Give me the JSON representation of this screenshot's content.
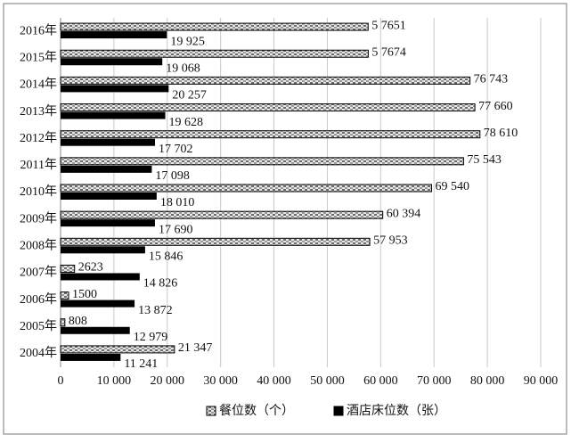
{
  "chart_data": {
    "type": "bar",
    "orientation": "horizontal",
    "categories": [
      "2016年",
      "2015年",
      "2014年",
      "2013年",
      "2012年",
      "2011年",
      "2010年",
      "2009年",
      "2008年",
      "2007年",
      "2006年",
      "2005年",
      "2004年"
    ],
    "series": [
      {
        "name": "餐位数（个）",
        "color": "#9a9a9a",
        "values": [
          57651,
          57674,
          76743,
          77660,
          78610,
          75543,
          69540,
          60394,
          57953,
          2623,
          1500,
          808,
          21347
        ],
        "value_labels": [
          "5 7651",
          "5 7674",
          "76 743",
          "77 660",
          "78 610",
          "75 543",
          "69 540",
          "60 394",
          "57 953",
          "2623",
          "1500",
          "808",
          "21 347"
        ]
      },
      {
        "name": "酒店床位数（张）",
        "color": "#000000",
        "values": [
          19925,
          19068,
          20257,
          19628,
          17702,
          17098,
          18010,
          17690,
          15846,
          14826,
          13872,
          12979,
          11241
        ],
        "value_labels": [
          "19 925",
          "19 068",
          "20 257",
          "19 628",
          "17 702",
          "17 098",
          "18 010",
          "17 690",
          "15 846",
          "14 826",
          "13 872",
          "12 979",
          "11 241"
        ]
      }
    ],
    "xlim": [
      0,
      90000
    ],
    "xticks": [
      0,
      {
        "value": 10000,
        "label": "10 000"
      },
      {
        "value": 20000,
        "label": "20 000"
      },
      {
        "value": 30000,
        "label": "30 000"
      },
      {
        "value": 40000,
        "label": "40 000"
      },
      {
        "value": 50000,
        "label": "50 000"
      },
      {
        "value": 60000,
        "label": "60 000"
      },
      {
        "value": 70000,
        "label": "70 000"
      },
      {
        "value": 80000,
        "label": "80 000"
      },
      {
        "value": 90000,
        "label": "90 000"
      }
    ],
    "grid": true,
    "legend": "bottom"
  }
}
